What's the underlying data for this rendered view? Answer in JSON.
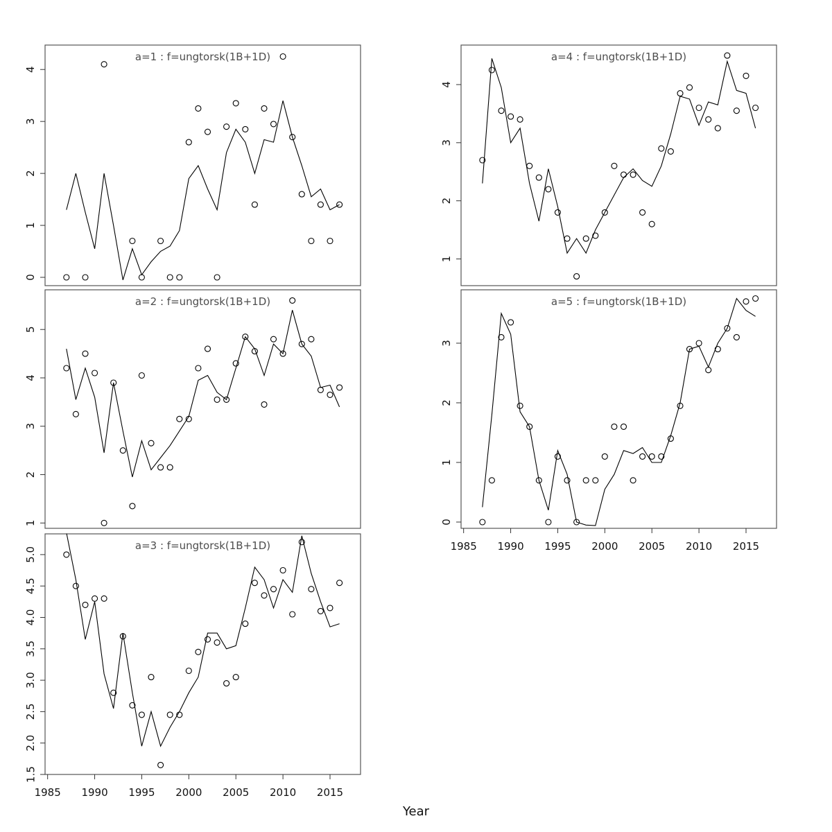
{
  "figure": {
    "x_axis_label": "Year",
    "x_ticks": [
      1985,
      1990,
      1995,
      2000,
      2005,
      2010,
      2015
    ],
    "colors": {
      "background": "#ffffff",
      "frame": "#555555",
      "axis": "#333333",
      "tick_text": "#111111",
      "title_text": "#4d4d4d",
      "line": "#000000",
      "point": "#000000"
    }
  },
  "chart_data": [
    {
      "type": "scatter",
      "panel": "a1",
      "title": "a=1 : f=ungtorsk(1B+1D)",
      "xlabel": "Year",
      "xlim": [
        1984.73,
        2018.24
      ],
      "ylim": [
        -0.16,
        4.47
      ],
      "y_ticks": [
        "0",
        "1",
        "2",
        "3",
        "4"
      ],
      "y_tick_values": [
        0,
        1,
        2,
        3,
        4
      ],
      "show_x_axis": false,
      "grid": false,
      "legend": "none",
      "points": [
        [
          1987,
          0
        ],
        [
          1989,
          0
        ],
        [
          1991,
          4.1
        ],
        [
          1994,
          0.7
        ],
        [
          1995,
          0
        ],
        [
          1997,
          0.7
        ],
        [
          1998,
          0
        ],
        [
          1999,
          0
        ],
        [
          2000,
          2.6
        ],
        [
          2001,
          3.25
        ],
        [
          2002,
          2.8
        ],
        [
          2003,
          0
        ],
        [
          2004,
          2.9
        ],
        [
          2005,
          3.35
        ],
        [
          2006,
          2.85
        ],
        [
          2007,
          1.4
        ],
        [
          2008,
          3.25
        ],
        [
          2009,
          2.95
        ],
        [
          2010,
          4.25
        ],
        [
          2011,
          2.7
        ],
        [
          2012,
          1.6
        ],
        [
          2013,
          0.7
        ],
        [
          2014,
          1.4
        ],
        [
          2015,
          0.7
        ],
        [
          2016,
          1.4
        ]
      ],
      "line": [
        [
          1987,
          1.3
        ],
        [
          1988,
          2.0
        ],
        [
          1989,
          1.25
        ],
        [
          1990,
          0.55
        ],
        [
          1991,
          2.0
        ],
        [
          1992,
          1.0
        ],
        [
          1993,
          -0.05
        ],
        [
          1994,
          0.55
        ],
        [
          1995,
          0.05
        ],
        [
          1996,
          0.3
        ],
        [
          1997,
          0.5
        ],
        [
          1998,
          0.6
        ],
        [
          1999,
          0.9
        ],
        [
          2000,
          1.9
        ],
        [
          2001,
          2.15
        ],
        [
          2002,
          1.7
        ],
        [
          2003,
          1.3
        ],
        [
          2004,
          2.4
        ],
        [
          2005,
          2.85
        ],
        [
          2006,
          2.6
        ],
        [
          2007,
          2.0
        ],
        [
          2008,
          2.65
        ],
        [
          2009,
          2.6
        ],
        [
          2010,
          3.4
        ],
        [
          2011,
          2.7
        ],
        [
          2012,
          2.15
        ],
        [
          2013,
          1.55
        ],
        [
          2014,
          1.7
        ],
        [
          2015,
          1.3
        ],
        [
          2016,
          1.4
        ]
      ]
    },
    {
      "type": "scatter",
      "panel": "a2",
      "title": "a=2 : f=ungtorsk(1B+1D)",
      "xlabel": "Year",
      "xlim": [
        1984.73,
        2018.24
      ],
      "ylim": [
        0.89,
        5.82
      ],
      "y_ticks": [
        "1",
        "2",
        "3",
        "4",
        "5"
      ],
      "y_tick_values": [
        1,
        2,
        3,
        4,
        5
      ],
      "show_x_axis": false,
      "grid": false,
      "legend": "none",
      "points": [
        [
          1987,
          4.2
        ],
        [
          1988,
          3.25
        ],
        [
          1989,
          4.5
        ],
        [
          1990,
          4.1
        ],
        [
          1991,
          1.0
        ],
        [
          1992,
          3.9
        ],
        [
          1993,
          2.5
        ],
        [
          1994,
          1.35
        ],
        [
          1995,
          4.05
        ],
        [
          1996,
          2.65
        ],
        [
          1997,
          2.15
        ],
        [
          1998,
          2.15
        ],
        [
          1999,
          3.15
        ],
        [
          2000,
          3.15
        ],
        [
          2001,
          4.2
        ],
        [
          2002,
          4.6
        ],
        [
          2003,
          3.55
        ],
        [
          2004,
          3.55
        ],
        [
          2005,
          4.3
        ],
        [
          2006,
          4.85
        ],
        [
          2007,
          4.55
        ],
        [
          2008,
          3.45
        ],
        [
          2009,
          4.8
        ],
        [
          2010,
          4.5
        ],
        [
          2011,
          5.6
        ],
        [
          2012,
          4.7
        ],
        [
          2013,
          4.8
        ],
        [
          2014,
          3.75
        ],
        [
          2015,
          3.65
        ],
        [
          2016,
          3.8
        ]
      ],
      "line": [
        [
          1987,
          4.6
        ],
        [
          1988,
          3.55
        ],
        [
          1989,
          4.2
        ],
        [
          1990,
          3.6
        ],
        [
          1991,
          2.45
        ],
        [
          1992,
          3.9
        ],
        [
          1993,
          2.9
        ],
        [
          1994,
          1.95
        ],
        [
          1995,
          2.7
        ],
        [
          1996,
          2.1
        ],
        [
          1997,
          2.35
        ],
        [
          1998,
          2.6
        ],
        [
          1999,
          2.9
        ],
        [
          2000,
          3.2
        ],
        [
          2001,
          3.95
        ],
        [
          2002,
          4.05
        ],
        [
          2003,
          3.7
        ],
        [
          2004,
          3.55
        ],
        [
          2005,
          4.2
        ],
        [
          2006,
          4.85
        ],
        [
          2007,
          4.6
        ],
        [
          2008,
          4.05
        ],
        [
          2009,
          4.7
        ],
        [
          2010,
          4.5
        ],
        [
          2011,
          5.4
        ],
        [
          2012,
          4.7
        ],
        [
          2013,
          4.45
        ],
        [
          2014,
          3.8
        ],
        [
          2015,
          3.85
        ],
        [
          2016,
          3.4
        ]
      ]
    },
    {
      "type": "scatter",
      "panel": "a3",
      "title": "a=3 : f=ungtorsk(1B+1D)",
      "xlabel": "Year",
      "xlim": [
        1984.73,
        2018.24
      ],
      "ylim": [
        1.5,
        5.33
      ],
      "y_ticks": [
        "1.5",
        "2.0",
        "2.5",
        "3.0",
        "3.5",
        "4.0",
        "4.5",
        "5.0"
      ],
      "y_tick_values": [
        1.5,
        2.0,
        2.5,
        3.0,
        3.5,
        4.0,
        4.5,
        5.0
      ],
      "show_x_axis": true,
      "grid": false,
      "legend": "none",
      "points": [
        [
          1987,
          5.0
        ],
        [
          1988,
          4.5
        ],
        [
          1989,
          4.2
        ],
        [
          1990,
          4.3
        ],
        [
          1991,
          4.3
        ],
        [
          1992,
          2.8
        ],
        [
          1993,
          3.7
        ],
        [
          1994,
          2.6
        ],
        [
          1995,
          2.45
        ],
        [
          1996,
          3.05
        ],
        [
          1997,
          1.65
        ],
        [
          1998,
          2.45
        ],
        [
          1999,
          2.45
        ],
        [
          2000,
          3.15
        ],
        [
          2001,
          3.45
        ],
        [
          2002,
          3.65
        ],
        [
          2003,
          3.6
        ],
        [
          2004,
          2.95
        ],
        [
          2005,
          3.05
        ],
        [
          2006,
          3.9
        ],
        [
          2007,
          4.55
        ],
        [
          2008,
          4.35
        ],
        [
          2009,
          4.45
        ],
        [
          2010,
          4.75
        ],
        [
          2011,
          4.05
        ],
        [
          2012,
          5.2
        ],
        [
          2013,
          4.45
        ],
        [
          2014,
          4.1
        ],
        [
          2015,
          4.15
        ],
        [
          2016,
          4.55
        ]
      ],
      "line": [
        [
          1987,
          5.35
        ],
        [
          1988,
          4.6
        ],
        [
          1989,
          3.65
        ],
        [
          1990,
          4.25
        ],
        [
          1991,
          3.1
        ],
        [
          1992,
          2.55
        ],
        [
          1993,
          3.75
        ],
        [
          1994,
          2.8
        ],
        [
          1995,
          1.95
        ],
        [
          1996,
          2.5
        ],
        [
          1997,
          1.95
        ],
        [
          1998,
          2.25
        ],
        [
          1999,
          2.5
        ],
        [
          2000,
          2.8
        ],
        [
          2001,
          3.05
        ],
        [
          2002,
          3.75
        ],
        [
          2003,
          3.75
        ],
        [
          2004,
          3.5
        ],
        [
          2005,
          3.55
        ],
        [
          2006,
          4.15
        ],
        [
          2007,
          4.8
        ],
        [
          2008,
          4.6
        ],
        [
          2009,
          4.15
        ],
        [
          2010,
          4.6
        ],
        [
          2011,
          4.4
        ],
        [
          2012,
          5.3
        ],
        [
          2013,
          4.7
        ],
        [
          2014,
          4.25
        ],
        [
          2015,
          3.85
        ],
        [
          2016,
          3.9
        ]
      ]
    },
    {
      "type": "scatter",
      "panel": "a4",
      "title": "a=4 : f=ungtorsk(1B+1D)",
      "xlabel": "Year",
      "xlim": [
        1984.73,
        2018.24
      ],
      "ylim": [
        0.54,
        4.68
      ],
      "y_ticks": [
        "1",
        "2",
        "3",
        "4"
      ],
      "y_tick_values": [
        1,
        2,
        3,
        4
      ],
      "show_x_axis": false,
      "grid": false,
      "legend": "none",
      "points": [
        [
          1987,
          2.7
        ],
        [
          1988,
          4.25
        ],
        [
          1989,
          3.55
        ],
        [
          1990,
          3.45
        ],
        [
          1991,
          3.4
        ],
        [
          1992,
          2.6
        ],
        [
          1993,
          2.4
        ],
        [
          1994,
          2.2
        ],
        [
          1995,
          1.8
        ],
        [
          1996,
          1.35
        ],
        [
          1997,
          0.7
        ],
        [
          1998,
          1.35
        ],
        [
          1999,
          1.4
        ],
        [
          2000,
          1.8
        ],
        [
          2001,
          2.6
        ],
        [
          2002,
          2.45
        ],
        [
          2003,
          2.45
        ],
        [
          2004,
          1.8
        ],
        [
          2005,
          1.6
        ],
        [
          2006,
          2.9
        ],
        [
          2007,
          2.85
        ],
        [
          2008,
          3.85
        ],
        [
          2009,
          3.95
        ],
        [
          2010,
          3.6
        ],
        [
          2011,
          3.4
        ],
        [
          2012,
          3.25
        ],
        [
          2013,
          4.5
        ],
        [
          2014,
          3.55
        ],
        [
          2015,
          4.15
        ],
        [
          2016,
          3.6
        ]
      ],
      "line": [
        [
          1987,
          2.3
        ],
        [
          1988,
          4.45
        ],
        [
          1989,
          3.95
        ],
        [
          1990,
          3.0
        ],
        [
          1991,
          3.25
        ],
        [
          1992,
          2.3
        ],
        [
          1993,
          1.65
        ],
        [
          1994,
          2.55
        ],
        [
          1995,
          1.9
        ],
        [
          1996,
          1.1
        ],
        [
          1997,
          1.35
        ],
        [
          1998,
          1.1
        ],
        [
          1999,
          1.5
        ],
        [
          2000,
          1.8
        ],
        [
          2001,
          2.1
        ],
        [
          2002,
          2.4
        ],
        [
          2003,
          2.55
        ],
        [
          2004,
          2.35
        ],
        [
          2005,
          2.25
        ],
        [
          2006,
          2.6
        ],
        [
          2007,
          3.15
        ],
        [
          2008,
          3.8
        ],
        [
          2009,
          3.75
        ],
        [
          2010,
          3.3
        ],
        [
          2011,
          3.7
        ],
        [
          2012,
          3.65
        ],
        [
          2013,
          4.4
        ],
        [
          2014,
          3.9
        ],
        [
          2015,
          3.85
        ],
        [
          2016,
          3.25
        ]
      ]
    },
    {
      "type": "scatter",
      "panel": "a5",
      "title": "a=5 : f=ungtorsk(1B+1D)",
      "xlabel": "Year",
      "xlim": [
        1984.73,
        2018.24
      ],
      "ylim": [
        -0.105,
        3.895
      ],
      "y_ticks": [
        "0",
        "1",
        "2",
        "3"
      ],
      "y_tick_values": [
        0,
        1,
        2,
        3
      ],
      "show_x_axis": true,
      "grid": false,
      "legend": "none",
      "points": [
        [
          1987,
          0
        ],
        [
          1988,
          0.7
        ],
        [
          1989,
          3.1
        ],
        [
          1990,
          3.35
        ],
        [
          1991,
          1.95
        ],
        [
          1992,
          1.6
        ],
        [
          1993,
          0.7
        ],
        [
          1994,
          0
        ],
        [
          1995,
          1.1
        ],
        [
          1996,
          0.7
        ],
        [
          1997,
          0
        ],
        [
          1998,
          0.7
        ],
        [
          1999,
          0.7
        ],
        [
          2000,
          1.1
        ],
        [
          2001,
          1.6
        ],
        [
          2002,
          1.6
        ],
        [
          2003,
          0.7
        ],
        [
          2004,
          1.1
        ],
        [
          2005,
          1.1
        ],
        [
          2006,
          1.1
        ],
        [
          2007,
          1.4
        ],
        [
          2008,
          1.95
        ],
        [
          2009,
          2.9
        ],
        [
          2010,
          3.0
        ],
        [
          2011,
          2.55
        ],
        [
          2012,
          2.9
        ],
        [
          2013,
          3.25
        ],
        [
          2014,
          3.1
        ],
        [
          2015,
          3.7
        ],
        [
          2016,
          3.75
        ]
      ],
      "line": [
        [
          1987,
          0.25
        ],
        [
          1988,
          1.8
        ],
        [
          1989,
          3.5
        ],
        [
          1990,
          3.15
        ],
        [
          1991,
          1.85
        ],
        [
          1992,
          1.6
        ],
        [
          1993,
          0.7
        ],
        [
          1994,
          0.2
        ],
        [
          1995,
          1.2
        ],
        [
          1996,
          0.8
        ],
        [
          1997,
          0.0
        ],
        [
          1998,
          -0.05
        ],
        [
          1999,
          -0.06
        ],
        [
          2000,
          0.55
        ],
        [
          2001,
          0.8
        ],
        [
          2002,
          1.2
        ],
        [
          2003,
          1.15
        ],
        [
          2004,
          1.25
        ],
        [
          2005,
          1.0
        ],
        [
          2006,
          1.0
        ],
        [
          2007,
          1.45
        ],
        [
          2008,
          2.0
        ],
        [
          2009,
          2.9
        ],
        [
          2010,
          2.95
        ],
        [
          2011,
          2.6
        ],
        [
          2012,
          3.0
        ],
        [
          2013,
          3.25
        ],
        [
          2014,
          3.75
        ],
        [
          2015,
          3.55
        ],
        [
          2016,
          3.45
        ]
      ]
    }
  ]
}
